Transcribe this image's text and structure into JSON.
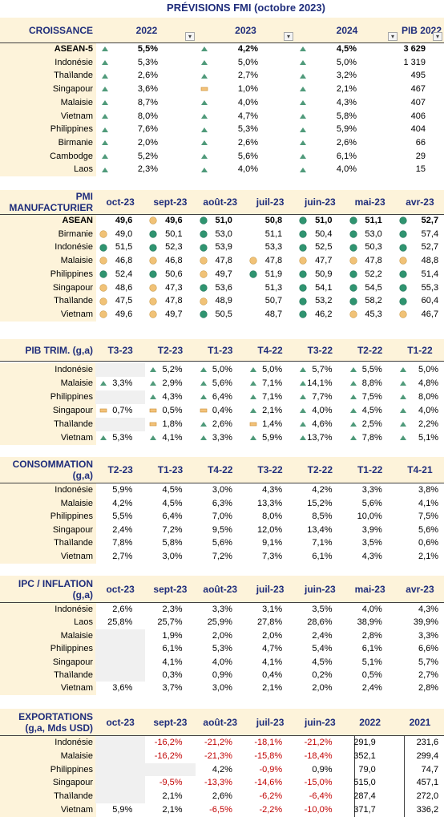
{
  "title": "PRÉVISIONS FMI (octobre 2023)",
  "sections": [
    {
      "title": "CROISSANCE",
      "filter_buttons": true,
      "columns": [
        "2022",
        "2023",
        "2024",
        "PIB 2022"
      ],
      "rows": [
        {
          "label": "ASEAN-5",
          "bold": true,
          "cells": [
            "5,5%",
            "4,2%",
            "4,5%",
            "3 629"
          ],
          "icons": [
            "up",
            "up",
            "up",
            null
          ]
        },
        {
          "label": "Indonésie",
          "cells": [
            "5,3%",
            "5,0%",
            "5,0%",
            "1 319"
          ],
          "icons": [
            "up",
            "up",
            "up",
            null
          ]
        },
        {
          "label": "Thaïlande",
          "cells": [
            "2,6%",
            "2,7%",
            "3,2%",
            "495"
          ],
          "icons": [
            "up",
            "up",
            "up",
            null
          ]
        },
        {
          "label": "Singapour",
          "cells": [
            "3,6%",
            "1,0%",
            "2,1%",
            "467"
          ],
          "icons": [
            "up",
            "flat",
            "up",
            null
          ]
        },
        {
          "label": "Malaisie",
          "cells": [
            "8,7%",
            "4,0%",
            "4,3%",
            "407"
          ],
          "icons": [
            "up",
            "up",
            "up",
            null
          ]
        },
        {
          "label": "Vietnam",
          "cells": [
            "8,0%",
            "4,7%",
            "5,8%",
            "406"
          ],
          "icons": [
            "up",
            "up",
            "up",
            null
          ]
        },
        {
          "label": "Philippines",
          "cells": [
            "7,6%",
            "5,3%",
            "5,9%",
            "404"
          ],
          "icons": [
            "up",
            "up",
            "up",
            null
          ]
        },
        {
          "label": "Birmanie",
          "cells": [
            "2,0%",
            "2,6%",
            "2,6%",
            "66"
          ],
          "icons": [
            "up",
            "up",
            "up",
            null
          ]
        },
        {
          "label": "Cambodge",
          "cells": [
            "5,2%",
            "5,6%",
            "6,1%",
            "29"
          ],
          "icons": [
            "up",
            "up",
            "up",
            null
          ]
        },
        {
          "label": "Laos",
          "cells": [
            "2,3%",
            "4,0%",
            "4,0%",
            "15"
          ],
          "icons": [
            "up",
            "up",
            "up",
            null
          ]
        }
      ]
    },
    {
      "title": "PMI MANUFACTURIER",
      "columns": [
        "oct-23",
        "sept-23",
        "août-23",
        "juil-23",
        "juin-23",
        "mai-23",
        "avr-23"
      ],
      "rows": [
        {
          "label": "ASEAN",
          "bold": true,
          "cells": [
            "49,6",
            "49,6",
            "51,0",
            "50,8",
            "51,0",
            "51,1",
            "52,7"
          ],
          "icons": [
            null,
            "orange",
            "green",
            null,
            "green",
            "green",
            "green"
          ]
        },
        {
          "label": "Birmanie",
          "cells": [
            "49,0",
            "50,1",
            "53,0",
            "51,1",
            "50,4",
            "53,0",
            "57,4"
          ],
          "icons": [
            "orange",
            "green",
            "green",
            null,
            "green",
            "green",
            "green"
          ]
        },
        {
          "label": "Indonésie",
          "cells": [
            "51,5",
            "52,3",
            "53,9",
            "53,3",
            "52,5",
            "50,3",
            "52,7"
          ],
          "icons": [
            "green",
            "green",
            "green",
            null,
            "green",
            "green",
            "green"
          ]
        },
        {
          "label": "Malaisie",
          "cells": [
            "46,8",
            "46,8",
            "47,8",
            "47,8",
            "47,7",
            "47,8",
            "48,8"
          ],
          "icons": [
            "orange",
            "orange",
            "orange",
            "orange",
            "orange",
            "orange",
            "orange"
          ]
        },
        {
          "label": "Philippines",
          "cells": [
            "52,4",
            "50,6",
            "49,7",
            "51,9",
            "50,9",
            "52,2",
            "51,4"
          ],
          "icons": [
            "green",
            "green",
            "orange",
            "green",
            "green",
            "green",
            "green"
          ]
        },
        {
          "label": "Singapour",
          "cells": [
            "48,6",
            "47,3",
            "53,6",
            "51,3",
            "54,1",
            "54,5",
            "55,3"
          ],
          "icons": [
            "orange",
            "orange",
            "green",
            null,
            "green",
            "green",
            "green"
          ]
        },
        {
          "label": "Thaïlande",
          "cells": [
            "47,5",
            "47,8",
            "48,9",
            "50,7",
            "53,2",
            "58,2",
            "60,4"
          ],
          "icons": [
            "orange",
            "orange",
            "orange",
            null,
            "green",
            "green",
            "green"
          ]
        },
        {
          "label": "Vietnam",
          "cells": [
            "49,6",
            "49,7",
            "50,5",
            "48,7",
            "46,2",
            "45,3",
            "46,7"
          ],
          "icons": [
            "orange",
            "orange",
            "green",
            null,
            "green",
            "orange",
            "orange"
          ]
        }
      ]
    },
    {
      "title": "PIB TRIM. (g,a)",
      "columns": [
        "T3-23",
        "T2-23",
        "T1-23",
        "T4-22",
        "T3-22",
        "T2-22",
        "T1-22"
      ],
      "rows": [
        {
          "label": "Indonésie",
          "cells": [
            null,
            "5,2%",
            "5,0%",
            "5,0%",
            "5,7%",
            "5,5%",
            "5,0%"
          ],
          "icons": [
            null,
            "up",
            "up",
            "up",
            "up",
            "up",
            "up"
          ]
        },
        {
          "label": "Malaisie",
          "cells": [
            "3,3%",
            "2,9%",
            "5,6%",
            "7,1%",
            "14,1%",
            "8,8%",
            "4,8%"
          ],
          "icons": [
            "up",
            "up",
            "up",
            "up",
            "up",
            "up",
            "up"
          ]
        },
        {
          "label": "Philippines",
          "cells": [
            null,
            "4,3%",
            "6,4%",
            "7,1%",
            "7,7%",
            "7,5%",
            "8,0%"
          ],
          "icons": [
            null,
            "up",
            "up",
            "up",
            "up",
            "up",
            "up"
          ]
        },
        {
          "label": "Singapour",
          "cells": [
            "0,7%",
            "0,5%",
            "0,4%",
            "2,1%",
            "4,0%",
            "4,5%",
            "4,0%"
          ],
          "icons": [
            "flat",
            "flat",
            "flat",
            "up",
            "up",
            "up",
            "up"
          ]
        },
        {
          "label": "Thaïlande",
          "cells": [
            null,
            "1,8%",
            "2,6%",
            "1,4%",
            "4,6%",
            "2,5%",
            "2,2%"
          ],
          "icons": [
            null,
            "flat",
            "up",
            "flat",
            "up",
            "up",
            "up"
          ]
        },
        {
          "label": "Vietnam",
          "cells": [
            "5,3%",
            "4,1%",
            "3,3%",
            "5,9%",
            "13,7%",
            "7,8%",
            "5,1%"
          ],
          "icons": [
            "up",
            "up",
            "up",
            "up",
            "up",
            "up",
            "up"
          ]
        }
      ]
    },
    {
      "title": "CONSOMMATION (g,a)",
      "columns": [
        "T2-23",
        "T1-23",
        "T4-22",
        "T3-22",
        "T2-22",
        "T1-22",
        "T4-21"
      ],
      "rows": [
        {
          "label": "Indonésie",
          "cells": [
            "5,9%",
            "4,5%",
            "3,0%",
            "4,3%",
            "4,2%",
            "3,3%",
            "3,8%"
          ]
        },
        {
          "label": "Malaisie",
          "cells": [
            "4,2%",
            "4,5%",
            "6,3%",
            "13,3%",
            "15,2%",
            "5,6%",
            "4,1%"
          ]
        },
        {
          "label": "Philippines",
          "cells": [
            "5,5%",
            "6,4%",
            "7,0%",
            "8,0%",
            "8,5%",
            "10,0%",
            "7,5%"
          ]
        },
        {
          "label": "Singapour",
          "cells": [
            "2,4%",
            "7,2%",
            "9,5%",
            "12,0%",
            "13,4%",
            "3,9%",
            "5,6%"
          ]
        },
        {
          "label": "Thaïlande",
          "cells": [
            "7,8%",
            "5,8%",
            "5,6%",
            "9,1%",
            "7,1%",
            "3,5%",
            "0,6%"
          ]
        },
        {
          "label": "Vietnam",
          "cells": [
            "2,7%",
            "3,0%",
            "7,2%",
            "7,3%",
            "6,1%",
            "4,3%",
            "2,1%"
          ]
        }
      ]
    },
    {
      "title": "IPC / INFLATION (g,a)",
      "columns": [
        "oct-23",
        "sept-23",
        "août-23",
        "juil-23",
        "juin-23",
        "mai-23",
        "avr-23"
      ],
      "rows": [
        {
          "label": "Indonésie",
          "cells": [
            "2,6%",
            "2,3%",
            "3,3%",
            "3,1%",
            "3,5%",
            "4,0%",
            "4,3%"
          ]
        },
        {
          "label": "Laos",
          "cells": [
            "25,8%",
            "25,7%",
            "25,9%",
            "27,8%",
            "28,6%",
            "38,9%",
            "39,9%"
          ]
        },
        {
          "label": "Malaisie",
          "cells": [
            null,
            "1,9%",
            "2,0%",
            "2,0%",
            "2,4%",
            "2,8%",
            "3,3%"
          ]
        },
        {
          "label": "Philippines",
          "cells": [
            null,
            "6,1%",
            "5,3%",
            "4,7%",
            "5,4%",
            "6,1%",
            "6,6%"
          ]
        },
        {
          "label": "Singapour",
          "cells": [
            null,
            "4,1%",
            "4,0%",
            "4,1%",
            "4,5%",
            "5,1%",
            "5,7%"
          ]
        },
        {
          "label": "Thaïlande",
          "cells": [
            null,
            "0,3%",
            "0,9%",
            "0,4%",
            "0,2%",
            "0,5%",
            "2,7%"
          ]
        },
        {
          "label": "Vietnam",
          "cells": [
            "3,6%",
            "3,7%",
            "3,0%",
            "2,1%",
            "2,0%",
            "2,4%",
            "2,8%"
          ]
        }
      ]
    },
    {
      "title": "EXPORTATIONS (g,a, Mds USD)",
      "columns": [
        "oct-23",
        "sept-23",
        "août-23",
        "juil-23",
        "juin-23",
        "2022",
        "2021"
      ],
      "rows": [
        {
          "label": "Indonésie",
          "cells": [
            null,
            "-16,2%",
            "-21,2%",
            "-18,1%",
            "-21,2%",
            "291,9",
            "231,6"
          ]
        },
        {
          "label": "Malaisie",
          "cells": [
            null,
            "-16,2%",
            "-21,3%",
            "-15,8%",
            "-18,4%",
            "352,1",
            "299,4"
          ]
        },
        {
          "label": "Philippines",
          "cells": [
            null,
            null,
            "4,2%",
            "-0,9%",
            "0,9%",
            "79,0",
            "74,7"
          ]
        },
        {
          "label": "Singapour",
          "cells": [
            null,
            "-9,5%",
            "-13,3%",
            "-14,6%",
            "-15,0%",
            "515,0",
            "457,1"
          ]
        },
        {
          "label": "Thaïlande",
          "cells": [
            null,
            "2,1%",
            "2,6%",
            "-6,2%",
            "-6,4%",
            "287,4",
            "272,0"
          ]
        },
        {
          "label": "Vietnam",
          "cells": [
            "5,9%",
            "2,1%",
            "-6,5%",
            "-2,2%",
            "-10,0%",
            "371,7",
            "336,2"
          ]
        }
      ]
    }
  ]
}
